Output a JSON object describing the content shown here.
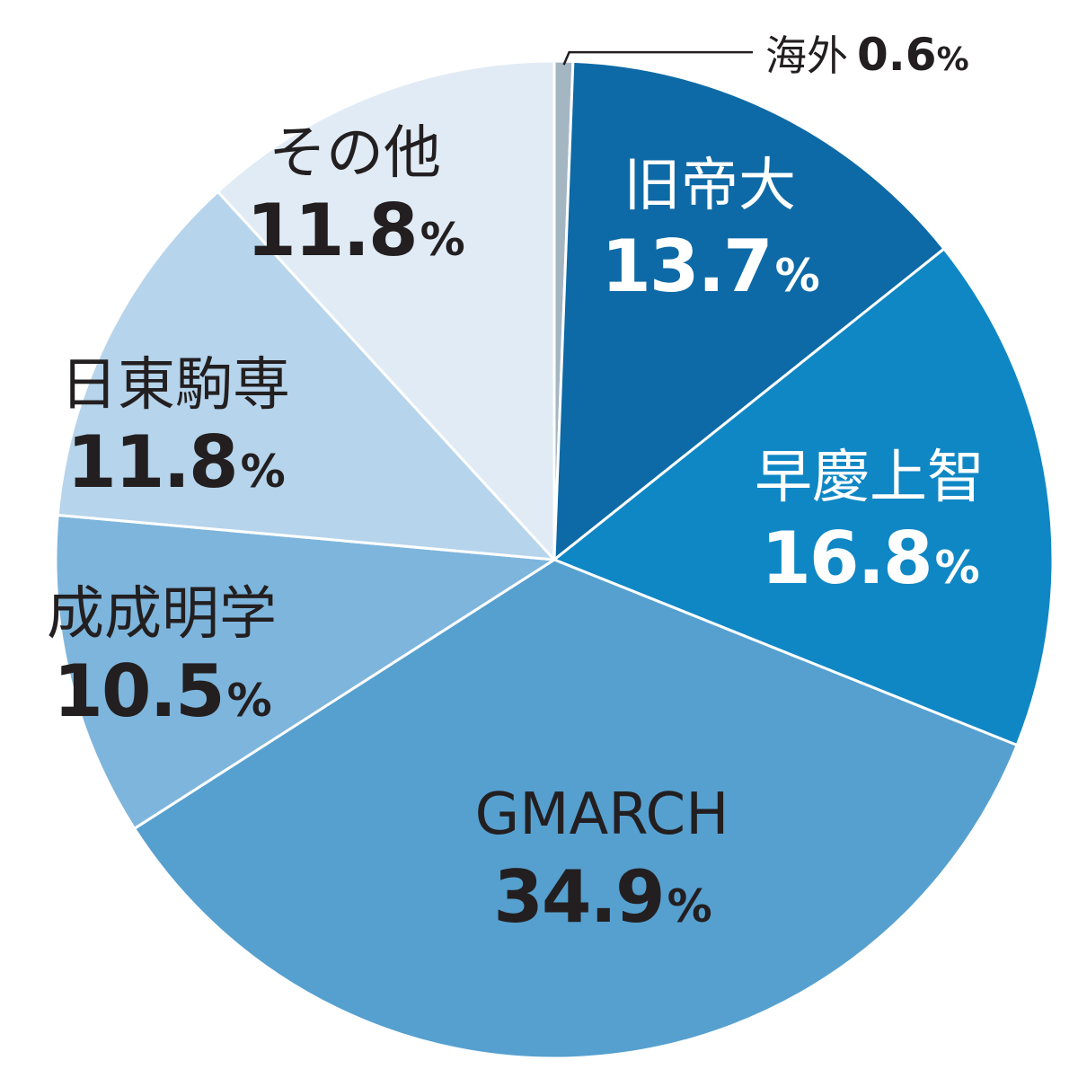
{
  "chart_data": {
    "type": "pie",
    "start_angle_deg": 0,
    "direction": "clockwise",
    "slices": [
      {
        "label": "海外",
        "value": 0.6,
        "display_value": "0.6",
        "unit": "%",
        "color": "#a5b6c3",
        "label_color": "#231f20",
        "label_style": "callout"
      },
      {
        "label": "旧帝大",
        "value": 13.7,
        "display_value": "13.7",
        "unit": "%",
        "color": "#0d6aa6",
        "label_color": "#ffffff",
        "label_style": "inside"
      },
      {
        "label": "早慶上智",
        "value": 16.8,
        "display_value": "16.8",
        "unit": "%",
        "color": "#0f87c5",
        "label_color": "#ffffff",
        "label_style": "inside"
      },
      {
        "label": "GMARCH",
        "value": 34.9,
        "display_value": "34.9",
        "unit": "%",
        "color": "#56a0d0",
        "label_color": "#231f20",
        "label_style": "inside"
      },
      {
        "label": "成成明学",
        "value": 10.5,
        "display_value": "10.5",
        "unit": "%",
        "color": "#7eb5dc",
        "label_color": "#231f20",
        "label_style": "inside"
      },
      {
        "label": "日東駒専",
        "value": 11.8,
        "display_value": "11.8",
        "unit": "%",
        "color": "#b6d4eb",
        "label_color": "#231f20",
        "label_style": "inside"
      },
      {
        "label": "その他",
        "value": 11.8,
        "display_value": "11.8",
        "unit": "%",
        "color": "#e0ebf5",
        "label_color": "#231f20",
        "label_style": "inside"
      }
    ]
  }
}
